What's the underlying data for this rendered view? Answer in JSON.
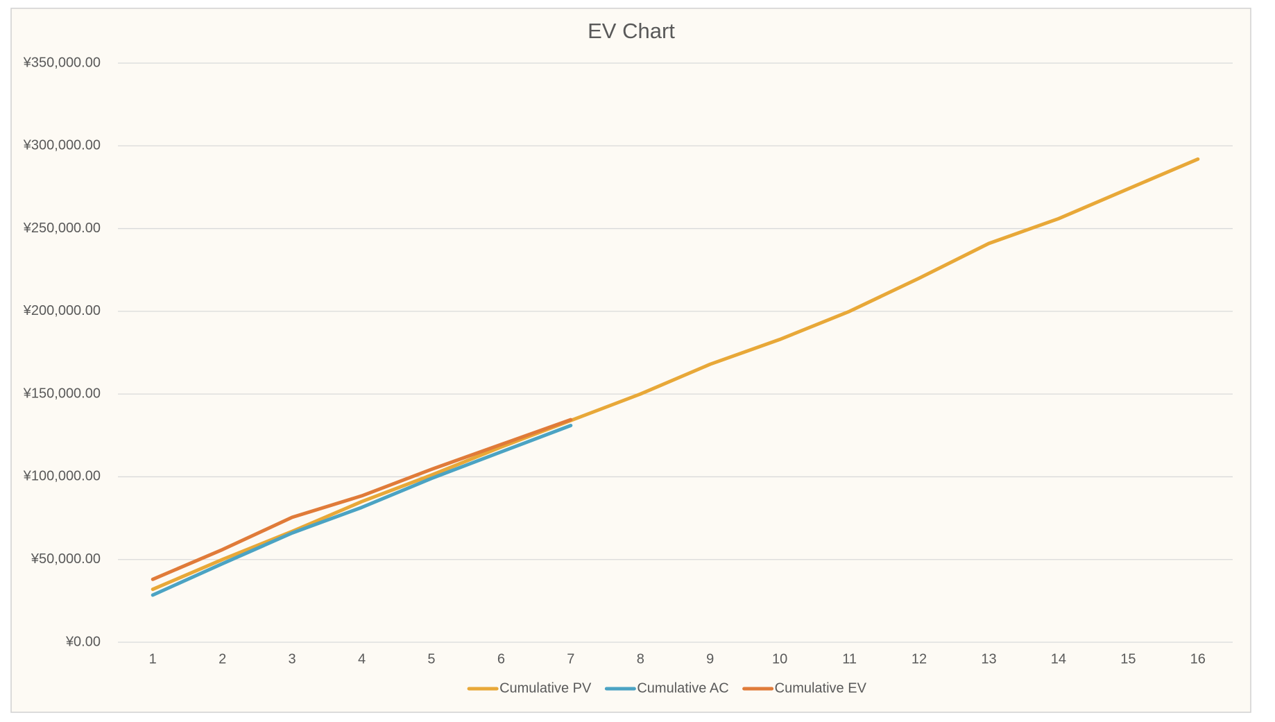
{
  "chart_data": {
    "type": "line",
    "title": "EV Chart",
    "categories": [
      "1",
      "2",
      "3",
      "4",
      "5",
      "6",
      "7",
      "8",
      "9",
      "10",
      "11",
      "12",
      "13",
      "14",
      "15",
      "16"
    ],
    "series": [
      {
        "name": "Cumulative PV",
        "color": "#e8a838",
        "values": [
          32000,
          50000,
          67000,
          85000,
          101000,
          118000,
          134000,
          150000,
          168000,
          183000,
          200000,
          220000,
          241000,
          256000,
          274000,
          292000
        ]
      },
      {
        "name": "Cumulative AC",
        "color": "#4ba3c3",
        "values": [
          28500,
          47500,
          66000,
          81500,
          99000,
          115000,
          131000,
          null,
          null,
          null,
          null,
          null,
          null,
          null,
          null,
          null
        ]
      },
      {
        "name": "Cumulative EV",
        "color": "#e07b39",
        "values": [
          38000,
          56000,
          75500,
          88500,
          104500,
          119500,
          134500,
          null,
          null,
          null,
          null,
          null,
          null,
          null,
          null,
          null
        ]
      }
    ],
    "ylim": [
      0,
      350000
    ],
    "yticks": [
      {
        "value": 0,
        "label": "¥0.00"
      },
      {
        "value": 50000,
        "label": "¥50,000.00"
      },
      {
        "value": 100000,
        "label": "¥100,000.00"
      },
      {
        "value": 150000,
        "label": "¥150,000.00"
      },
      {
        "value": 200000,
        "label": "¥200,000.00"
      },
      {
        "value": 250000,
        "label": "¥250,000.00"
      },
      {
        "value": 300000,
        "label": "¥300,000.00"
      },
      {
        "value": 350000,
        "label": "¥350,000.00"
      }
    ],
    "grid": true,
    "legend": "bottom"
  }
}
